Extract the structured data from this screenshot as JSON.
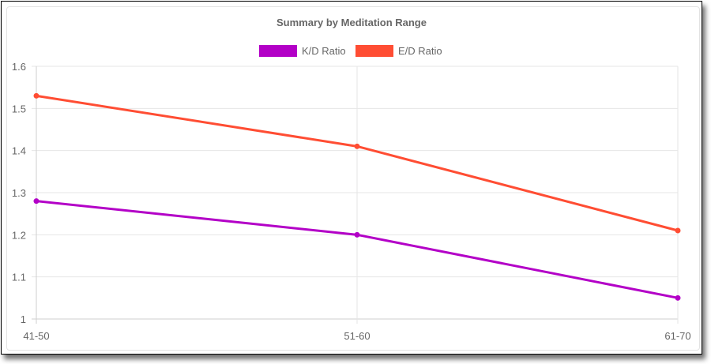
{
  "chart_data": {
    "type": "line",
    "title": "Summary by Meditation Range",
    "categories": [
      "41-50",
      "51-60",
      "61-70"
    ],
    "series": [
      {
        "name": "K/D Ratio",
        "values": [
          1.28,
          1.2,
          1.05
        ],
        "color": "#b300c7"
      },
      {
        "name": "E/D Ratio",
        "values": [
          1.53,
          1.41,
          1.21
        ],
        "color": "#ff4d33"
      }
    ],
    "ylim": [
      1,
      1.6
    ],
    "yticks": [
      "1",
      "1.1",
      "1.2",
      "1.3",
      "1.4",
      "1.5",
      "1.6"
    ],
    "grid": true,
    "legend_position": "top"
  }
}
